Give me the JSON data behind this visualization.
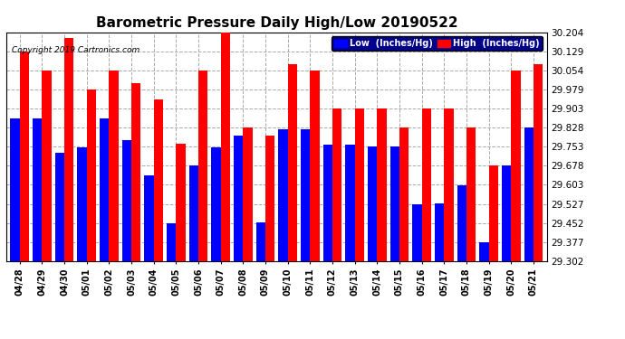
{
  "title": "Barometric Pressure Daily High/Low 20190522",
  "copyright": "Copyright 2019 Cartronics.com",
  "categories": [
    "04/28",
    "04/29",
    "04/30",
    "05/01",
    "05/02",
    "05/03",
    "05/04",
    "05/05",
    "05/06",
    "05/07",
    "05/08",
    "05/09",
    "05/10",
    "05/11",
    "05/12",
    "05/13",
    "05/14",
    "05/15",
    "05/16",
    "05/17",
    "05/18",
    "05/19",
    "05/20",
    "05/21"
  ],
  "low_values": [
    29.865,
    29.865,
    29.728,
    29.75,
    29.865,
    29.78,
    29.64,
    29.45,
    29.68,
    29.75,
    29.795,
    29.453,
    29.82,
    29.82,
    29.76,
    29.76,
    29.755,
    29.755,
    29.527,
    29.53,
    29.6,
    29.377,
    29.678,
    29.828
  ],
  "high_values": [
    30.129,
    30.054,
    30.18,
    29.979,
    30.054,
    30.004,
    29.94,
    29.765,
    30.054,
    30.204,
    29.828,
    29.795,
    30.079,
    30.054,
    29.903,
    29.903,
    29.903,
    29.828,
    29.903,
    29.903,
    29.828,
    29.678,
    30.054,
    30.079
  ],
  "ylim_min": 29.302,
  "ylim_max": 30.204,
  "yticks": [
    29.302,
    29.377,
    29.452,
    29.527,
    29.603,
    29.678,
    29.753,
    29.828,
    29.903,
    29.979,
    30.054,
    30.129,
    30.204
  ],
  "low_color": "#0000ff",
  "high_color": "#ff0000",
  "bg_color": "#ffffff",
  "grid_color": "#aaaaaa",
  "title_fontsize": 11,
  "legend_low_label": "Low  (Inches/Hg)",
  "legend_high_label": "High  (Inches/Hg)"
}
